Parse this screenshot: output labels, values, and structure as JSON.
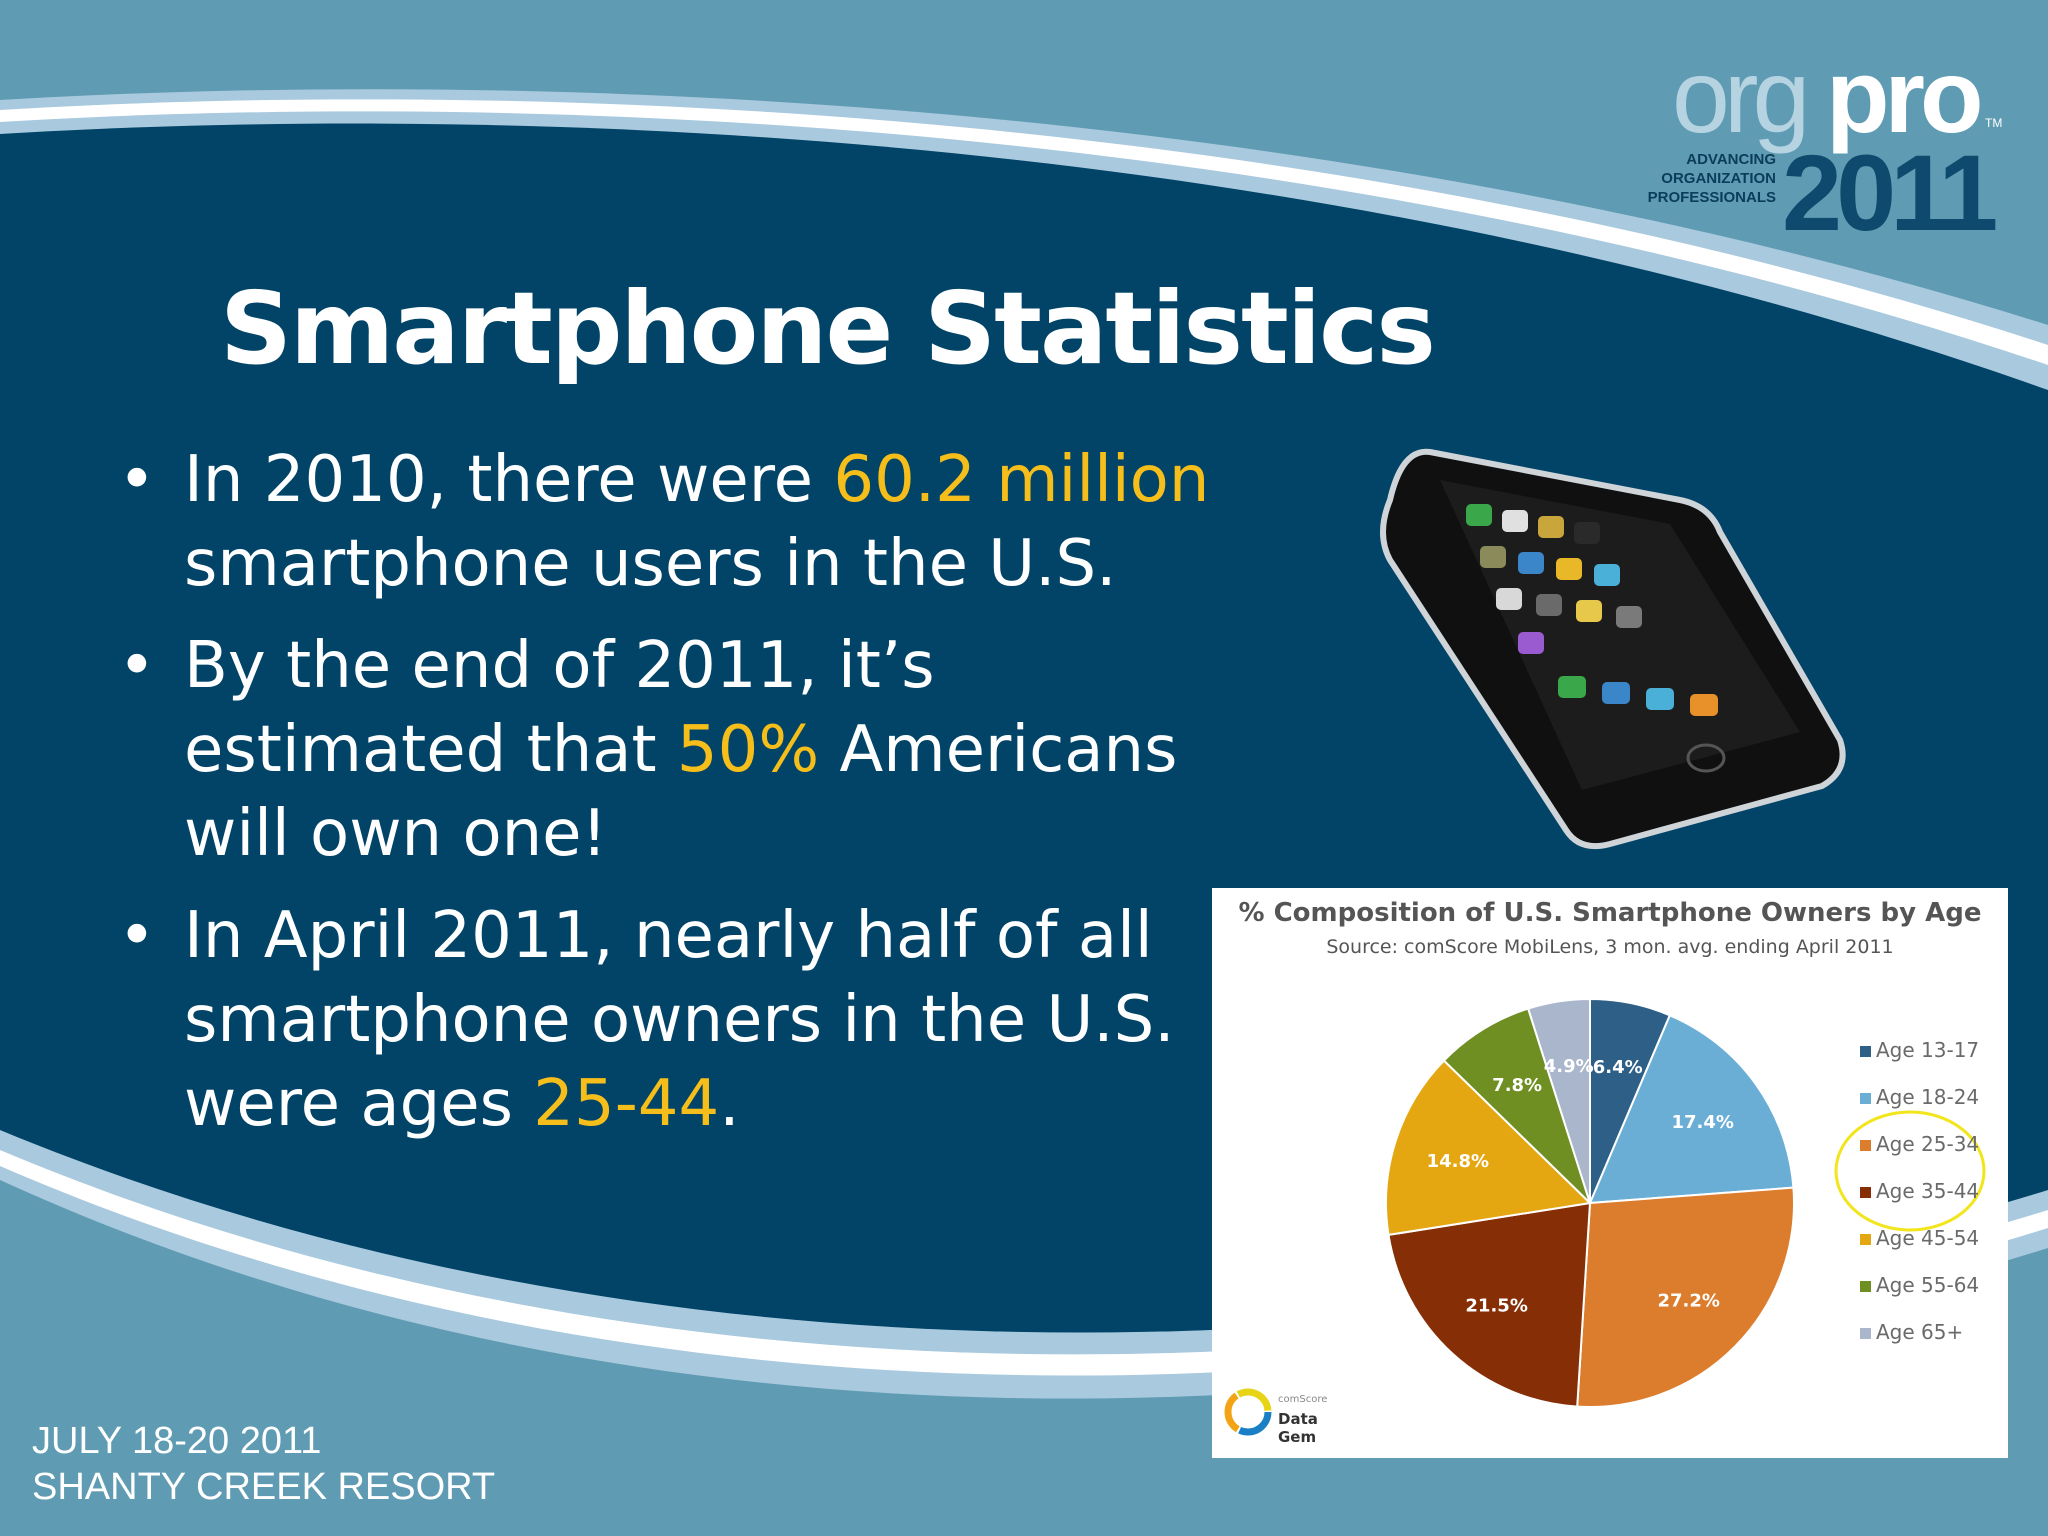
{
  "logo": {
    "org": "org",
    "pro": "pro",
    "tm": "TM",
    "tagline": [
      "ADVANCING",
      "ORGANIZATION",
      "PROFESSIONALS"
    ],
    "year": "2011"
  },
  "title": "Smartphone Statistics",
  "bullets": [
    {
      "parts": [
        {
          "text": "In 2010, there were ",
          "highlight": false
        },
        {
          "text": "60.2 million",
          "highlight": true
        },
        {
          "text": " smartphone users in the U.S.",
          "highlight": false
        }
      ]
    },
    {
      "parts": [
        {
          "text": "By the end of 2011, it’s estimated that ",
          "highlight": false
        },
        {
          "text": "50%",
          "highlight": true
        },
        {
          "text": " Americans will own one!",
          "highlight": false
        }
      ]
    },
    {
      "parts": [
        {
          "text": "In April 2011, nearly half of all smartphone owners in the U.S. were ages ",
          "highlight": false
        },
        {
          "text": "25-44",
          "highlight": true
        },
        {
          "text": ".",
          "highlight": false
        }
      ]
    }
  ],
  "bullet_char": "•",
  "chart_data": {
    "type": "pie",
    "title": "% Composition of U.S. Smartphone Owners by Age",
    "subtitle": "Source: comScore MobiLens, 3 mon. avg. ending April 2011",
    "slices": [
      {
        "label": "Age 13-17",
        "value": 6.4,
        "display": "6.4%",
        "color": "#2e5f87"
      },
      {
        "label": "Age 18-24",
        "value": 17.4,
        "display": "17.4%",
        "color": "#6aaed6"
      },
      {
        "label": "Age 25-34",
        "value": 27.2,
        "display": "27.2%",
        "color": "#dc7c2d"
      },
      {
        "label": "Age 35-44",
        "value": 21.5,
        "display": "21.5%",
        "color": "#862e06"
      },
      {
        "label": "Age 45-54",
        "value": 14.8,
        "display": "14.8%",
        "color": "#e4a711"
      },
      {
        "label": "Age 55-64",
        "value": 7.8,
        "display": "7.8%",
        "color": "#6f8f23"
      },
      {
        "label": "Age 65+",
        "value": 4.9,
        "display": "4.9%",
        "color": "#a9b6cc"
      }
    ],
    "legend_position": "right",
    "highlighted_legend": [
      "Age 25-34",
      "Age 35-44"
    ],
    "highlight_color": "#f2e51b"
  },
  "chart_brand": {
    "line1": "comScore",
    "line2": "Data Gem"
  },
  "footer": {
    "dates": "JULY 18-20 2011",
    "venue": "SHANTY CREEK RESORT"
  },
  "colors": {
    "dark_blue": "#014467",
    "mid_blue": "#5f9cb3",
    "light_band": "#a9c9de",
    "highlight_text": "#f6be1a"
  }
}
